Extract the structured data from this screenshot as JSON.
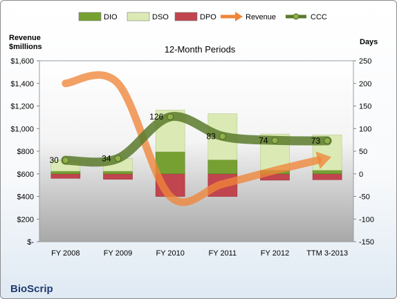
{
  "chart_data": {
    "type": "bar",
    "title": "12-Month Periods",
    "company": "BioScrip",
    "left_axis_label": [
      "Revenue",
      "$millions"
    ],
    "right_axis_label": "Days",
    "categories": [
      "FY 2008",
      "FY 2009",
      "FY 2010",
      "FY 2011",
      "FY 2012",
      "TTM 3-2013"
    ],
    "left_ticks": [
      "$-",
      "$200",
      "$400",
      "$600",
      "$800",
      "$1,000",
      "$1,200",
      "$1,400",
      "$1,600"
    ],
    "left_ylim": [
      0,
      1600
    ],
    "right_ticks": [
      "-150",
      "-100",
      "-50",
      "0",
      "50",
      "100",
      "150",
      "200",
      "250"
    ],
    "right_ylim": [
      -150,
      250
    ],
    "series": [
      {
        "name": "DIO",
        "type": "stacked-bar",
        "axis": "right",
        "color": "#77a033",
        "values": [
          6,
          6,
          49,
          31,
          8,
          8
        ]
      },
      {
        "name": "DSO",
        "type": "stacked-bar",
        "axis": "right",
        "color": "#dbeab5",
        "values": [
          24,
          28,
          92,
          102,
          80,
          78
        ]
      },
      {
        "name": "DPO",
        "type": "negative-bar",
        "axis": "right",
        "color": "#c1454f",
        "values": [
          -10,
          -12,
          -50,
          -50,
          -14,
          -13
        ]
      },
      {
        "name": "Revenue",
        "type": "arrow-line",
        "axis": "left",
        "color": "#f0853a",
        "values": [
          1400,
          1400,
          400,
          510,
          630,
          740
        ]
      },
      {
        "name": "CCC",
        "type": "line",
        "axis": "right",
        "color": "#5a7a2c",
        "values": [
          30,
          34,
          126,
          83,
          74,
          73
        ],
        "data_labels": [
          "30",
          "34",
          "126",
          "83",
          "74",
          "73"
        ]
      }
    ],
    "legend": [
      "DIO",
      "DSO",
      "DPO",
      "Revenue",
      "CCC"
    ],
    "legend_position": "top",
    "grid": false
  }
}
